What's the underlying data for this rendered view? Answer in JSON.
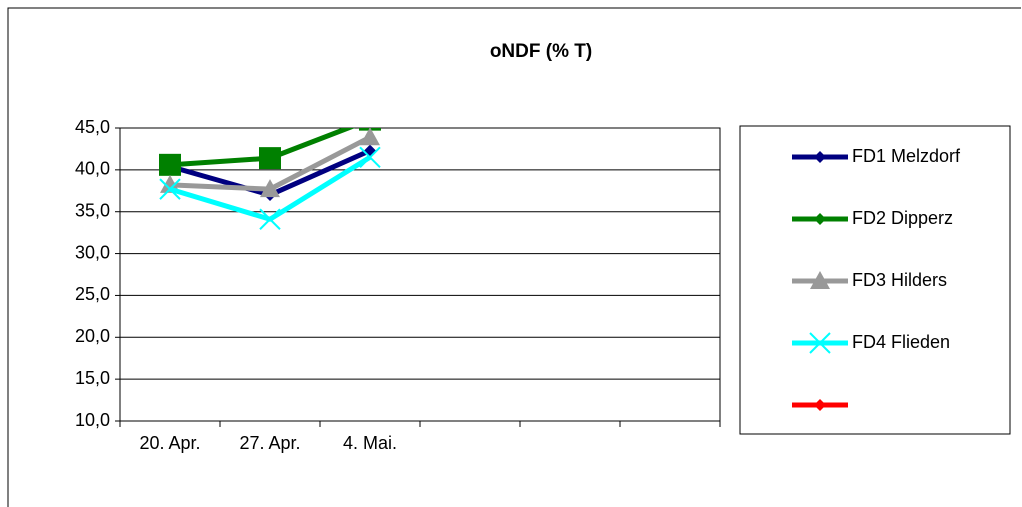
{
  "chart_data": {
    "type": "line",
    "title": "oNDF (% T)",
    "categories": [
      "20. Apr.",
      "27. Apr.",
      "4. Mai.",
      null,
      null,
      null
    ],
    "ylim": [
      10,
      45
    ],
    "yticks": [
      {
        "value": 10,
        "label": "10,0"
      },
      {
        "value": 15,
        "label": "15,0"
      },
      {
        "value": 20,
        "label": "20,0"
      },
      {
        "value": 25,
        "label": "25,0"
      },
      {
        "value": 30,
        "label": "30,0"
      },
      {
        "value": 35,
        "label": "35,0"
      },
      {
        "value": 40,
        "label": "40,0"
      },
      {
        "value": 45,
        "label": "45,0"
      }
    ],
    "grid": true,
    "legend": "right",
    "series": [
      {
        "name": "FD1 Melzdorf",
        "color": "#000080",
        "marker": "diamond",
        "values": [
          40.4,
          37.0,
          42.3,
          null,
          null,
          null
        ]
      },
      {
        "name": "FD2 Dipperz",
        "color": "#008000",
        "marker": "square",
        "values": [
          40.6,
          41.4,
          46.0,
          null,
          null,
          null
        ]
      },
      {
        "name": "FD3 Hilders",
        "color": "#999999",
        "marker": "triangle",
        "values": [
          38.2,
          37.7,
          43.9,
          null,
          null,
          null
        ]
      },
      {
        "name": "FD4 Flieden",
        "color": "#00ffff",
        "marker": "x",
        "values": [
          37.7,
          34.1,
          41.5,
          null,
          null,
          null
        ]
      },
      {
        "name": null,
        "color": "#ff0000",
        "marker": "diamond",
        "values": [
          null,
          null,
          null,
          null,
          null,
          null
        ]
      }
    ]
  }
}
